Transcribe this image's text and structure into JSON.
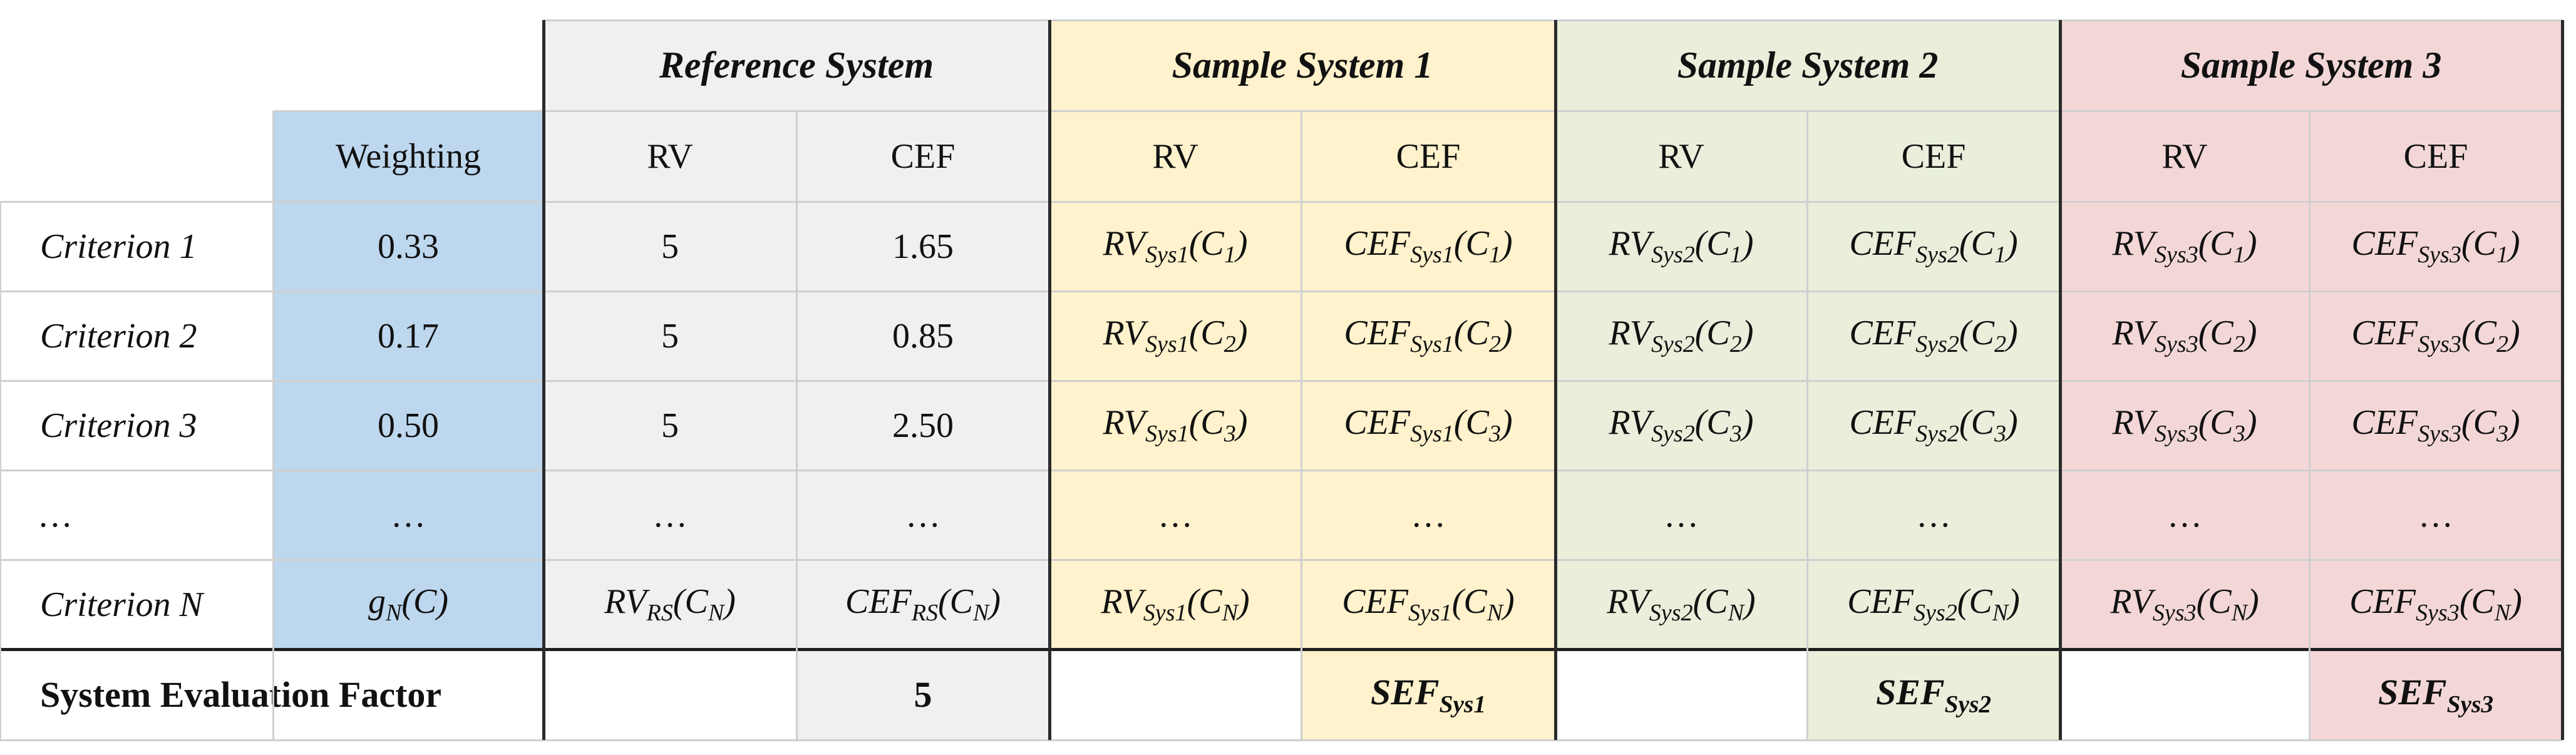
{
  "colors": {
    "weighting": "#bdd7ee",
    "reference": "#f0f0f0",
    "system1": "#fff2cc",
    "system2": "#e9efdb",
    "system3": "#f3d7d7"
  },
  "group_headers": [
    "Reference System",
    "Sample System 1",
    "Sample System 2",
    "Sample System 3"
  ],
  "column_headers": {
    "weighting": "Weighting",
    "rv": "RV",
    "cef": "CEF"
  },
  "rows": [
    {
      "criterion": "Criterion 1",
      "weighting": "0.33",
      "ref_rv": "5",
      "ref_cef": "1.65",
      "cells": [
        [
          "RV",
          "Sys1",
          "C",
          "1"
        ],
        [
          "CEF",
          "Sys1",
          "C",
          "1"
        ],
        [
          "RV",
          "Sys2",
          "C",
          "1"
        ],
        [
          "CEF",
          "Sys2",
          "C",
          "1"
        ],
        [
          "RV",
          "Sys3",
          "C",
          "1"
        ],
        [
          "CEF",
          "Sys3",
          "C",
          "1"
        ]
      ]
    },
    {
      "criterion": "Criterion 2",
      "weighting": "0.17",
      "ref_rv": "5",
      "ref_cef": "0.85",
      "cells": [
        [
          "RV",
          "Sys1",
          "C",
          "2"
        ],
        [
          "CEF",
          "Sys1",
          "C",
          "2"
        ],
        [
          "RV",
          "Sys2",
          "C",
          "2"
        ],
        [
          "CEF",
          "Sys2",
          "C",
          "2"
        ],
        [
          "RV",
          "Sys3",
          "C",
          "2"
        ],
        [
          "CEF",
          "Sys3",
          "C",
          "2"
        ]
      ]
    },
    {
      "criterion": "Criterion 3",
      "weighting": "0.50",
      "ref_rv": "5",
      "ref_cef": "2.50",
      "cells": [
        [
          "RV",
          "Sys1",
          "C",
          "3"
        ],
        [
          "CEF",
          "Sys1",
          "C",
          "3"
        ],
        [
          "RV",
          "Sys2",
          "C",
          "3"
        ],
        [
          "CEF",
          "Sys2",
          "C",
          "3"
        ],
        [
          "RV",
          "Sys3",
          "C",
          "3"
        ],
        [
          "CEF",
          "Sys3",
          "C",
          "3"
        ]
      ]
    },
    {
      "criterion": "…",
      "weighting": "…",
      "ref_rv": "…",
      "ref_cef": "…",
      "cells": [
        "…",
        "…",
        "…",
        "…",
        "…",
        "…"
      ]
    },
    {
      "criterion": "Criterion N",
      "weighting": [
        "g",
        "N",
        "(C)"
      ],
      "ref_rv": [
        "RV",
        "RS",
        "C",
        "N"
      ],
      "ref_cef": [
        "CEF",
        "RS",
        "C",
        "N"
      ],
      "cells": [
        [
          "RV",
          "Sys1",
          "C",
          "N"
        ],
        [
          "CEF",
          "Sys1",
          "C",
          "N"
        ],
        [
          "RV",
          "Sys2",
          "C",
          "N"
        ],
        [
          "CEF",
          "Sys2",
          "C",
          "N"
        ],
        [
          "RV",
          "Sys3",
          "C",
          "N"
        ],
        [
          "CEF",
          "Sys3",
          "C",
          "N"
        ]
      ]
    }
  ],
  "sef_row": {
    "label": "System Evaluation Factor",
    "reference_value": "5",
    "values": [
      [
        "SEF",
        "Sys1"
      ],
      [
        "SEF",
        "Sys2"
      ],
      [
        "SEF",
        "Sys3"
      ]
    ]
  }
}
